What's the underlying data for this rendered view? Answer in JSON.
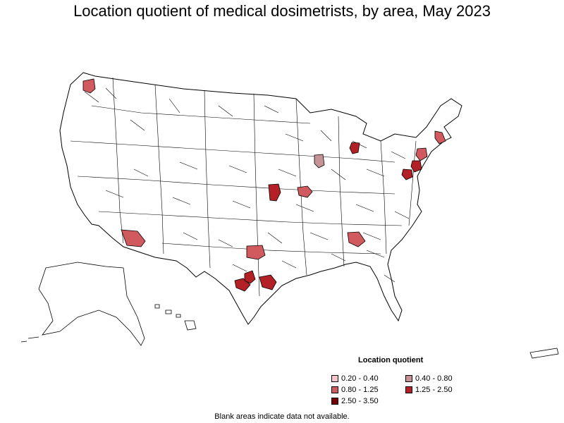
{
  "title": "Location quotient of medical dosimetrists, by area, May 2023",
  "legend": {
    "title": "Location quotient",
    "items": [
      {
        "label": "0.20 - 0.40",
        "color": "#f4c6c9"
      },
      {
        "label": "0.40 - 0.80",
        "color": "#c49396"
      },
      {
        "label": "0.80 - 1.25",
        "color": "#d05a5e"
      },
      {
        "label": "1.25 - 2.50",
        "color": "#b32025"
      },
      {
        "label": "2.50 - 3.50",
        "color": "#7a0008"
      }
    ]
  },
  "footnote": "Blank areas indicate data not available.",
  "areas": [
    {
      "region": "Seattle area",
      "class": "0.80 - 1.25"
    },
    {
      "region": "Phoenix area",
      "class": "0.80 - 1.25"
    },
    {
      "region": "Dallas area",
      "class": "0.80 - 1.25"
    },
    {
      "region": "Austin area",
      "class": "1.25 - 2.50"
    },
    {
      "region": "San Antonio area",
      "class": "1.25 - 2.50"
    },
    {
      "region": "Houston area",
      "class": "1.25 - 2.50"
    },
    {
      "region": "Kansas City area",
      "class": "1.25 - 2.50"
    },
    {
      "region": "St. Louis area",
      "class": "0.80 - 1.25"
    },
    {
      "region": "Chicago area",
      "class": "0.40 - 0.80"
    },
    {
      "region": "Detroit area",
      "class": "1.25 - 2.50"
    },
    {
      "region": "Atlanta area",
      "class": "0.80 - 1.25"
    },
    {
      "region": "Boston area",
      "class": "0.80 - 1.25"
    },
    {
      "region": "New York area",
      "class": "0.80 - 1.25"
    },
    {
      "region": "Philadelphia area",
      "class": "1.25 - 2.50"
    },
    {
      "region": "Washington area",
      "class": "1.25 - 2.50"
    }
  ]
}
